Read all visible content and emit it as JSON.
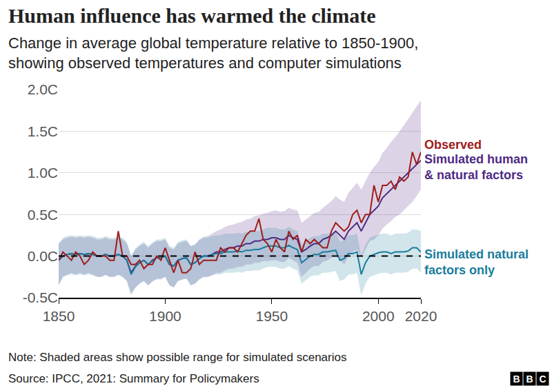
{
  "chart_data": {
    "type": "line",
    "title": "Human influence has warmed the climate",
    "subtitle": "Change in average global temperature relative to 1850-1900,\nshowing observed temperatures and computer simulations",
    "note": "Note: Shaded areas show possible range for simulated scenarios",
    "source": "Source: IPCC, 2021: Summary for Policymakers",
    "logo": "BBC",
    "grid": true,
    "xlim": [
      1850,
      2020
    ],
    "xticks": [
      1850,
      1900,
      1950,
      2000,
      2020
    ],
    "ylim": [
      -0.5,
      2.0
    ],
    "yticks": [
      {
        "value": -0.5,
        "label": "-0.5C"
      },
      {
        "value": 0,
        "label": "0.0C"
      },
      {
        "value": 0.5,
        "label": "0.5C"
      },
      {
        "value": 1.0,
        "label": "1.0C"
      },
      {
        "value": 1.5,
        "label": "1.5C"
      },
      {
        "value": 2.0,
        "label": "2.0C"
      }
    ],
    "x": [
      1850,
      1852,
      1854,
      1856,
      1858,
      1860,
      1862,
      1864,
      1866,
      1868,
      1870,
      1872,
      1874,
      1876,
      1878,
      1880,
      1882,
      1884,
      1886,
      1888,
      1890,
      1892,
      1894,
      1896,
      1898,
      1900,
      1902,
      1904,
      1906,
      1908,
      1910,
      1912,
      1914,
      1916,
      1918,
      1920,
      1922,
      1924,
      1926,
      1928,
      1930,
      1932,
      1934,
      1936,
      1938,
      1940,
      1942,
      1944,
      1946,
      1948,
      1950,
      1952,
      1954,
      1956,
      1958,
      1960,
      1962,
      1964,
      1966,
      1968,
      1970,
      1972,
      1974,
      1976,
      1978,
      1980,
      1982,
      1984,
      1986,
      1988,
      1990,
      1992,
      1994,
      1996,
      1998,
      2000,
      2002,
      2004,
      2006,
      2008,
      2010,
      2012,
      2014,
      2016,
      2018,
      2020
    ],
    "series": [
      {
        "name": "Simulated human\n& natural factors",
        "color": "#4e2a84",
        "line_style": "solid",
        "values": [
          -0.05,
          0.0,
          0.02,
          0.03,
          0.02,
          0.03,
          0.02,
          0.03,
          0.02,
          0.0,
          0.0,
          0.02,
          0.0,
          0.0,
          0.02,
          0.0,
          -0.05,
          -0.2,
          -0.12,
          -0.08,
          -0.05,
          -0.1,
          -0.05,
          -0.02,
          -0.02,
          0.0,
          -0.1,
          -0.12,
          -0.05,
          -0.03,
          -0.02,
          -0.1,
          -0.08,
          -0.03,
          0.0,
          0.0,
          0.02,
          0.05,
          0.05,
          0.08,
          0.1,
          0.1,
          0.12,
          0.12,
          0.15,
          0.15,
          0.18,
          0.18,
          0.2,
          0.2,
          0.22,
          0.22,
          0.2,
          0.2,
          0.25,
          0.22,
          0.2,
          0.05,
          0.08,
          0.12,
          0.15,
          0.15,
          0.2,
          0.22,
          0.25,
          0.3,
          0.25,
          0.2,
          0.3,
          0.35,
          0.4,
          0.3,
          0.4,
          0.5,
          0.55,
          0.6,
          0.7,
          0.75,
          0.8,
          0.85,
          0.9,
          0.95,
          1.0,
          1.05,
          1.1,
          1.15
        ],
        "low": [
          -0.35,
          -0.25,
          -0.22,
          -0.2,
          -0.22,
          -0.2,
          -0.22,
          -0.2,
          -0.22,
          -0.25,
          -0.25,
          -0.22,
          -0.25,
          -0.25,
          -0.22,
          -0.25,
          -0.3,
          -0.45,
          -0.38,
          -0.33,
          -0.3,
          -0.35,
          -0.3,
          -0.28,
          -0.28,
          -0.25,
          -0.35,
          -0.38,
          -0.3,
          -0.28,
          -0.27,
          -0.35,
          -0.33,
          -0.28,
          -0.25,
          -0.25,
          -0.23,
          -0.2,
          -0.2,
          -0.17,
          -0.15,
          -0.15,
          -0.13,
          -0.13,
          -0.1,
          -0.1,
          -0.08,
          -0.08,
          -0.06,
          -0.06,
          -0.05,
          -0.05,
          -0.07,
          -0.07,
          -0.02,
          -0.05,
          -0.08,
          -0.25,
          -0.2,
          -0.15,
          -0.12,
          -0.12,
          -0.07,
          -0.05,
          -0.02,
          0.02,
          -0.05,
          -0.1,
          0.0,
          0.05,
          0.08,
          -0.02,
          0.08,
          0.18,
          0.2,
          0.25,
          0.33,
          0.38,
          0.42,
          0.47,
          0.5,
          0.55,
          0.6,
          0.65,
          0.72,
          0.8
        ],
        "high": [
          0.15,
          0.2,
          0.22,
          0.23,
          0.22,
          0.23,
          0.22,
          0.23,
          0.22,
          0.2,
          0.2,
          0.22,
          0.2,
          0.2,
          0.22,
          0.2,
          0.15,
          0.0,
          0.08,
          0.12,
          0.15,
          0.1,
          0.15,
          0.18,
          0.18,
          0.2,
          0.1,
          0.08,
          0.15,
          0.17,
          0.18,
          0.12,
          0.14,
          0.2,
          0.23,
          0.24,
          0.27,
          0.3,
          0.32,
          0.35,
          0.37,
          0.38,
          0.4,
          0.41,
          0.44,
          0.45,
          0.48,
          0.49,
          0.51,
          0.52,
          0.54,
          0.55,
          0.53,
          0.54,
          0.58,
          0.56,
          0.55,
          0.4,
          0.44,
          0.48,
          0.52,
          0.53,
          0.58,
          0.62,
          0.66,
          0.72,
          0.68,
          0.65,
          0.76,
          0.82,
          0.88,
          0.8,
          0.9,
          1.0,
          1.07,
          1.13,
          1.24,
          1.3,
          1.37,
          1.43,
          1.5,
          1.57,
          1.65,
          1.72,
          1.8,
          1.87
        ]
      },
      {
        "name": "Simulated natural\nfactors only",
        "color": "#1a7d9c",
        "line_style": "solid",
        "values": [
          -0.05,
          0.0,
          0.02,
          0.03,
          0.02,
          0.03,
          0.02,
          0.03,
          0.02,
          0.0,
          0.0,
          0.02,
          0.0,
          0.0,
          0.02,
          0.0,
          -0.05,
          -0.22,
          -0.13,
          -0.08,
          -0.05,
          -0.1,
          -0.06,
          -0.02,
          -0.02,
          0.0,
          -0.1,
          -0.12,
          -0.05,
          -0.03,
          -0.02,
          -0.1,
          -0.08,
          -0.03,
          0.0,
          0.0,
          0.02,
          0.03,
          0.03,
          0.05,
          0.05,
          0.05,
          0.06,
          0.05,
          0.07,
          0.07,
          0.08,
          0.08,
          0.1,
          0.12,
          0.12,
          0.12,
          0.1,
          0.1,
          0.13,
          0.1,
          0.08,
          -0.08,
          -0.04,
          0.0,
          0.02,
          0.02,
          0.05,
          0.05,
          0.06,
          0.07,
          -0.05,
          -0.03,
          0.03,
          0.03,
          0.05,
          -0.22,
          -0.08,
          0.0,
          0.02,
          0.04,
          0.05,
          0.05,
          0.03,
          0.05,
          0.05,
          0.05,
          0.06,
          0.1,
          0.1,
          0.05
        ],
        "low": [
          -0.35,
          -0.25,
          -0.23,
          -0.22,
          -0.23,
          -0.22,
          -0.23,
          -0.22,
          -0.23,
          -0.25,
          -0.25,
          -0.23,
          -0.25,
          -0.25,
          -0.23,
          -0.25,
          -0.3,
          -0.47,
          -0.38,
          -0.33,
          -0.3,
          -0.35,
          -0.31,
          -0.27,
          -0.27,
          -0.25,
          -0.35,
          -0.37,
          -0.3,
          -0.28,
          -0.27,
          -0.35,
          -0.33,
          -0.28,
          -0.25,
          -0.25,
          -0.23,
          -0.22,
          -0.22,
          -0.2,
          -0.2,
          -0.2,
          -0.19,
          -0.2,
          -0.18,
          -0.18,
          -0.17,
          -0.17,
          -0.15,
          -0.13,
          -0.13,
          -0.13,
          -0.15,
          -0.15,
          -0.12,
          -0.15,
          -0.17,
          -0.33,
          -0.29,
          -0.25,
          -0.23,
          -0.23,
          -0.2,
          -0.2,
          -0.19,
          -0.18,
          -0.3,
          -0.28,
          -0.22,
          -0.22,
          -0.2,
          -0.47,
          -0.33,
          -0.25,
          -0.23,
          -0.21,
          -0.2,
          -0.2,
          -0.22,
          -0.2,
          -0.2,
          -0.2,
          -0.19,
          -0.15,
          -0.15,
          -0.2
        ],
        "high": [
          0.15,
          0.22,
          0.24,
          0.25,
          0.24,
          0.25,
          0.24,
          0.25,
          0.24,
          0.22,
          0.22,
          0.24,
          0.22,
          0.22,
          0.24,
          0.22,
          0.17,
          0.0,
          0.09,
          0.14,
          0.17,
          0.12,
          0.16,
          0.2,
          0.2,
          0.22,
          0.12,
          0.1,
          0.17,
          0.19,
          0.2,
          0.12,
          0.14,
          0.19,
          0.22,
          0.22,
          0.24,
          0.25,
          0.25,
          0.27,
          0.27,
          0.27,
          0.28,
          0.27,
          0.29,
          0.29,
          0.3,
          0.3,
          0.32,
          0.34,
          0.34,
          0.34,
          0.32,
          0.32,
          0.35,
          0.32,
          0.3,
          0.14,
          0.18,
          0.22,
          0.24,
          0.24,
          0.27,
          0.27,
          0.28,
          0.29,
          0.17,
          0.19,
          0.25,
          0.25,
          0.27,
          0.0,
          0.14,
          0.22,
          0.24,
          0.26,
          0.27,
          0.27,
          0.25,
          0.27,
          0.27,
          0.27,
          0.28,
          0.32,
          0.32,
          0.3
        ]
      },
      {
        "name": "Observed",
        "color": "#9e1b1b",
        "line_style": "solid",
        "values": [
          -0.05,
          0.05,
          0.0,
          -0.05,
          0.05,
          0.0,
          -0.1,
          -0.05,
          0.05,
          0.0,
          0.0,
          0.0,
          -0.05,
          -0.05,
          0.3,
          0.0,
          0.0,
          -0.1,
          -0.1,
          -0.05,
          -0.15,
          -0.1,
          -0.1,
          0.0,
          -0.05,
          0.1,
          -0.05,
          -0.2,
          -0.05,
          -0.2,
          -0.2,
          -0.15,
          0.05,
          -0.1,
          -0.05,
          -0.05,
          -0.05,
          -0.05,
          0.1,
          0.05,
          0.1,
          0.1,
          0.05,
          0.15,
          0.25,
          0.3,
          0.3,
          0.45,
          0.2,
          0.15,
          0.05,
          0.2,
          0.1,
          0.05,
          0.3,
          0.2,
          0.25,
          0.05,
          0.2,
          0.15,
          0.2,
          0.15,
          0.1,
          0.1,
          0.3,
          0.4,
          0.35,
          0.3,
          0.35,
          0.5,
          0.55,
          0.4,
          0.5,
          0.5,
          0.85,
          0.65,
          0.85,
          0.85,
          0.9,
          0.8,
          0.95,
          0.9,
          0.95,
          1.25,
          1.1,
          1.25
        ]
      }
    ]
  }
}
